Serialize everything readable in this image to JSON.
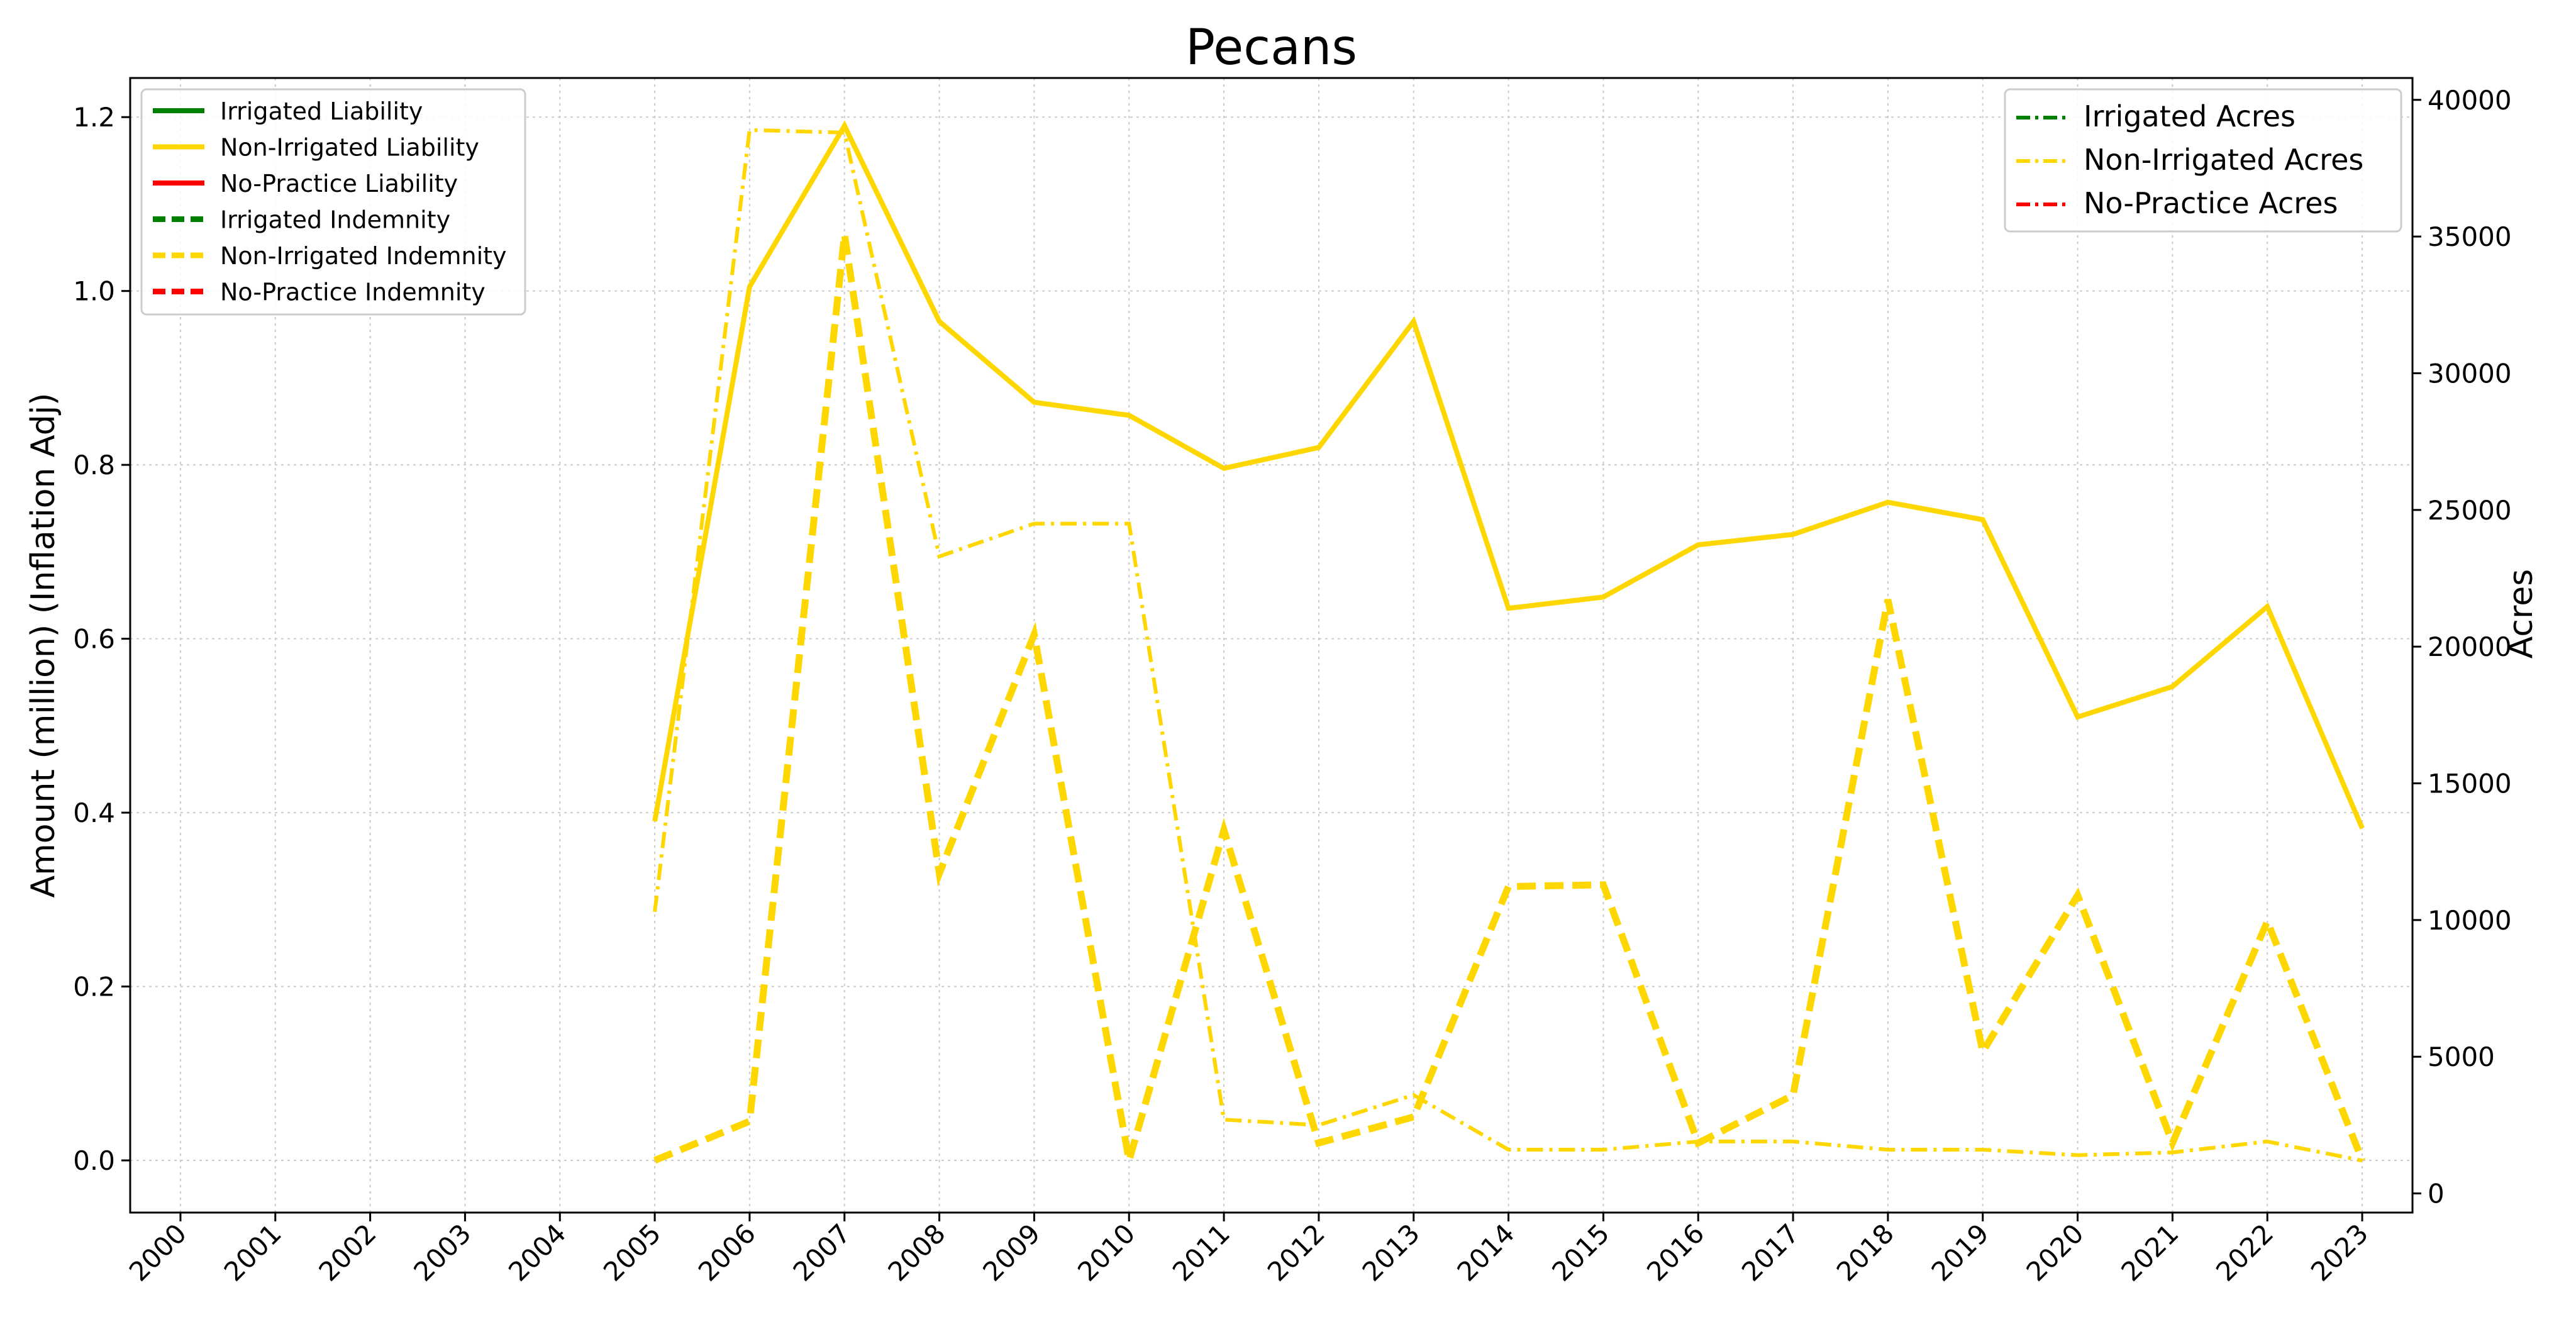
{
  "chart_data": {
    "type": "line",
    "title": "Pecans",
    "ylabel": "Amount (million) (Inflation Adj)",
    "y2label": "Acres",
    "xlabel": "",
    "grid": true,
    "ylim": [
      -0.06,
      1.245
    ],
    "y2lim": [
      -700,
      40800
    ],
    "categories": [
      "2000",
      "2001",
      "2002",
      "2003",
      "2004",
      "2005",
      "2006",
      "2007",
      "2008",
      "2009",
      "2010",
      "2011",
      "2012",
      "2013",
      "2014",
      "2015",
      "2016",
      "2017",
      "2018",
      "2019",
      "2020",
      "2021",
      "2022",
      "2023"
    ],
    "yticks": [
      "0.0",
      "0.2",
      "0.4",
      "0.6",
      "0.8",
      "1.0",
      "1.2"
    ],
    "y2ticks": [
      "0",
      "5000",
      "10000",
      "15000",
      "20000",
      "25000",
      "30000",
      "35000",
      "40000"
    ],
    "legend_left": {
      "placement": "upper-left",
      "entries": [
        "Irrigated Liability",
        "Non-Irrigated Liability",
        "No-Practice Liability",
        "Irrigated Indemnity",
        "Non-Irrigated Indemnity",
        "No-Practice Indemnity"
      ]
    },
    "legend_right": {
      "placement": "upper-right",
      "entries": [
        "Irrigated Acres",
        "Non-Irrigated Acres",
        "No-Practice Acres"
      ]
    },
    "series": [
      {
        "name": "Non-Irrigated Liability",
        "axis": "left",
        "style": "solid",
        "color": "#FFD700",
        "x": [
          "2005",
          "2006",
          "2007",
          "2008",
          "2009",
          "2010",
          "2011",
          "2012",
          "2013",
          "2014",
          "2015",
          "2016",
          "2017",
          "2018",
          "2019",
          "2020",
          "2021",
          "2022",
          "2023"
        ],
        "values": [
          0.39,
          1.005,
          1.19,
          0.965,
          0.872,
          0.857,
          0.796,
          0.82,
          0.965,
          0.635,
          0.648,
          0.708,
          0.72,
          0.757,
          0.737,
          0.51,
          0.545,
          0.637,
          0.382
        ]
      },
      {
        "name": "Non-Irrigated Indemnity",
        "axis": "left",
        "style": "dashed",
        "color": "#FFD700",
        "x": [
          "2005",
          "2006",
          "2007",
          "2008",
          "2009",
          "2010",
          "2011",
          "2012",
          "2013",
          "2014",
          "2015",
          "2016",
          "2017",
          "2018",
          "2019",
          "2020",
          "2021",
          "2022",
          "2023"
        ],
        "values": [
          0.0,
          0.045,
          1.065,
          0.33,
          0.605,
          0.0,
          0.38,
          0.02,
          0.05,
          0.315,
          0.317,
          0.02,
          0.075,
          0.645,
          0.125,
          0.305,
          0.02,
          0.275,
          0.0
        ]
      },
      {
        "name": "Non-Irrigated Acres",
        "axis": "right",
        "style": "dashdot",
        "color": "#FFD700",
        "x": [
          "2005",
          "2006",
          "2007",
          "2008",
          "2009",
          "2010",
          "2011",
          "2012",
          "2013",
          "2014",
          "2015",
          "2016",
          "2017",
          "2018",
          "2019",
          "2020",
          "2021",
          "2022",
          "2023"
        ],
        "values": [
          10300,
          38900,
          38800,
          23300,
          24500,
          24500,
          2700,
          2500,
          3600,
          1600,
          1600,
          1900,
          1900,
          1600,
          1600,
          1400,
          1500,
          1900,
          1200
        ]
      }
    ],
    "colors": {
      "irrigated": "#008000",
      "non_irrigated": "#FFD700",
      "no_practice": "#FF0000",
      "grid": "#cccccc"
    }
  }
}
